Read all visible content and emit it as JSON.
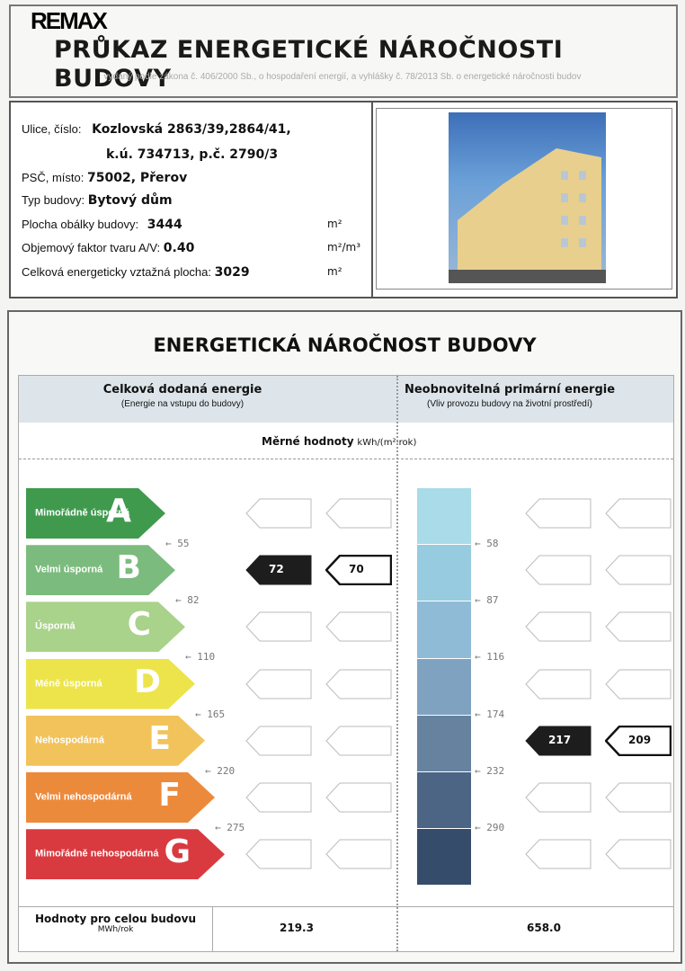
{
  "header": {
    "logo": "RE/MAX",
    "title": "PRŮKAZ ENERGETICKÉ NÁROČNOSTI BUDOVY",
    "subtitle": "vydaný podle zákona č. 406/2000 Sb., o hospodaření energií, a vyhlášky č. 78/2013 Sb. o energetické náročnosti budov"
  },
  "info": {
    "street_label": "Ulice, číslo:",
    "street_1": "Kozlovská 2863/39,2864/41,",
    "street_2": "k.ú. 734713, p.č. 2790/3",
    "psc_label": "PSČ, místo:",
    "psc": "75002, Přerov",
    "type_label": "Typ budovy:",
    "type": "Bytový dům",
    "area_label": "Plocha obálky budovy:",
    "area": "3444",
    "area_unit": "m²",
    "factor_label": "Objemový faktor tvaru A/V:",
    "factor": "0.40",
    "factor_unit": "m²/m³",
    "ref_label": "Celková energeticky vztažná plocha:",
    "ref": "3029",
    "ref_unit": "m²"
  },
  "rating": {
    "title": "ENERGETICKÁ NÁROČNOST BUDOVY",
    "left_title": "Celková dodaná energie",
    "left_sub": "(Energie na vstupu do budovy)",
    "right_title": "Neobnovitelná primární energie",
    "right_sub": "(Vliv provozu budovy na životní prostředí)",
    "specific_label": "Měrné hodnoty",
    "specific_unit": "kWh/(m²·rok)",
    "classes": [
      {
        "letter": "A",
        "label": "Mimořádně úsporná",
        "color": "#3f9a4e"
      },
      {
        "letter": "B",
        "label": "Velmi úsporná",
        "color": "#7cbb7e"
      },
      {
        "letter": "C",
        "label": "Úsporná",
        "color": "#a9d28a"
      },
      {
        "letter": "D",
        "label": "Méně úsporná",
        "color": "#ece44a"
      },
      {
        "letter": "E",
        "label": "Nehospodárná",
        "color": "#f1c35a"
      },
      {
        "letter": "F",
        "label": "Velmi nehospodárná",
        "color": "#ec8a3c"
      },
      {
        "letter": "G",
        "label": "Mimořádně nehospodárná",
        "color": "#d93a3f"
      }
    ],
    "left_thresholds": [
      "55",
      "82",
      "110",
      "165",
      "220",
      "275"
    ],
    "right_thresholds": [
      "58",
      "87",
      "116",
      "174",
      "232",
      "290"
    ],
    "left_values": {
      "class": "B",
      "current": "72",
      "reference": "70"
    },
    "right_values": {
      "class": "E",
      "current": "217",
      "reference": "209"
    },
    "footer_label": "Hodnoty pro celou budovu",
    "footer_unit": "MWh/rok",
    "footer_left": "219.3",
    "footer_right": "658.0"
  }
}
